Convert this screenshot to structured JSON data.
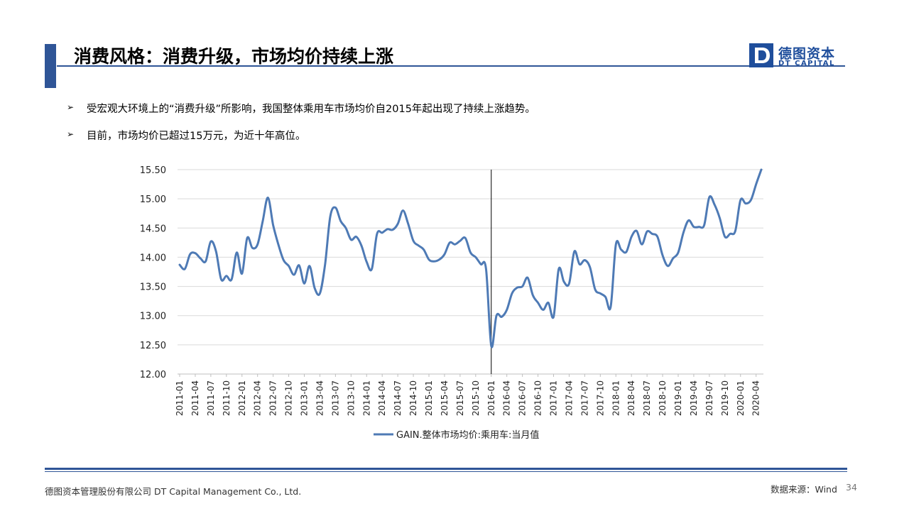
{
  "header": {
    "title": "消费风格：消费升级，市场均价持续上涨",
    "logo_cn": "德图资本",
    "logo_en": "DT CAPITAL",
    "logo_mark": "D"
  },
  "bullets": [
    "受宏观大环境上的“消费升级”所影响，我国整体乘用车市场均价自2015年起出现了持续上涨趋势。",
    "目前，市场均价已超过15万元，为近十年高位。"
  ],
  "bullet_icon": "arrow-bullet-icon",
  "chart_data": {
    "type": "line",
    "title": "",
    "xlabel": "",
    "ylabel": "",
    "ylim": [
      12.0,
      15.5
    ],
    "yticks": [
      "12.00",
      "12.50",
      "13.00",
      "13.50",
      "14.00",
      "14.50",
      "15.00",
      "15.50"
    ],
    "grid": true,
    "legend_position": "bottom",
    "line_color": "#4e7ab5",
    "marker_line_x": "2016-01",
    "x_tick_labels": [
      "2011-01",
      "2011-04",
      "2011-07",
      "2011-10",
      "2012-01",
      "2012-04",
      "2012-07",
      "2012-10",
      "2013-01",
      "2013-04",
      "2013-07",
      "2013-10",
      "2014-01",
      "2014-04",
      "2014-07",
      "2014-10",
      "2015-01",
      "2015-04",
      "2015-07",
      "2015-10",
      "2016-01",
      "2016-04",
      "2016-07",
      "2016-10",
      "2017-01",
      "2017-04",
      "2017-07",
      "2017-10",
      "2018-01",
      "2018-04",
      "2018-07",
      "2018-10",
      "2019-01",
      "2019-04",
      "2019-07",
      "2019-10",
      "2020-01",
      "2020-04"
    ],
    "series": [
      {
        "name": "GAIN.整体市场均价:乘用车:当月值",
        "start": "2011-01",
        "values": [
          13.87,
          13.8,
          14.05,
          14.07,
          13.98,
          13.93,
          14.27,
          14.1,
          13.62,
          13.68,
          13.62,
          14.08,
          13.72,
          14.33,
          14.16,
          14.22,
          14.62,
          15.02,
          14.55,
          14.22,
          13.95,
          13.85,
          13.7,
          13.86,
          13.55,
          13.85,
          13.47,
          13.38,
          13.88,
          14.7,
          14.85,
          14.62,
          14.5,
          14.3,
          14.35,
          14.2,
          13.92,
          13.8,
          14.4,
          14.42,
          14.48,
          14.47,
          14.57,
          14.8,
          14.57,
          14.28,
          14.2,
          14.13,
          13.96,
          13.93,
          13.96,
          14.05,
          14.25,
          14.22,
          14.28,
          14.33,
          14.08,
          14.0,
          13.88,
          13.8,
          12.48,
          13.0,
          12.98,
          13.1,
          13.38,
          13.48,
          13.5,
          13.65,
          13.35,
          13.22,
          13.1,
          13.22,
          12.98,
          13.8,
          13.58,
          13.55,
          14.1,
          13.88,
          13.95,
          13.83,
          13.45,
          13.38,
          13.32,
          13.15,
          14.22,
          14.13,
          14.09,
          14.35,
          14.45,
          14.22,
          14.44,
          14.4,
          14.35,
          14.03,
          13.85,
          13.98,
          14.08,
          14.42,
          14.63,
          14.52,
          14.52,
          14.55,
          15.03,
          14.9,
          14.67,
          14.35,
          14.4,
          14.45,
          14.98,
          14.92,
          14.98,
          15.25,
          15.5
        ]
      }
    ]
  },
  "footer": {
    "company": "德图资本管理股份有限公司  DT Capital Management  Co., Ltd.",
    "source": "数据来源：Wind",
    "page_number": "34"
  }
}
